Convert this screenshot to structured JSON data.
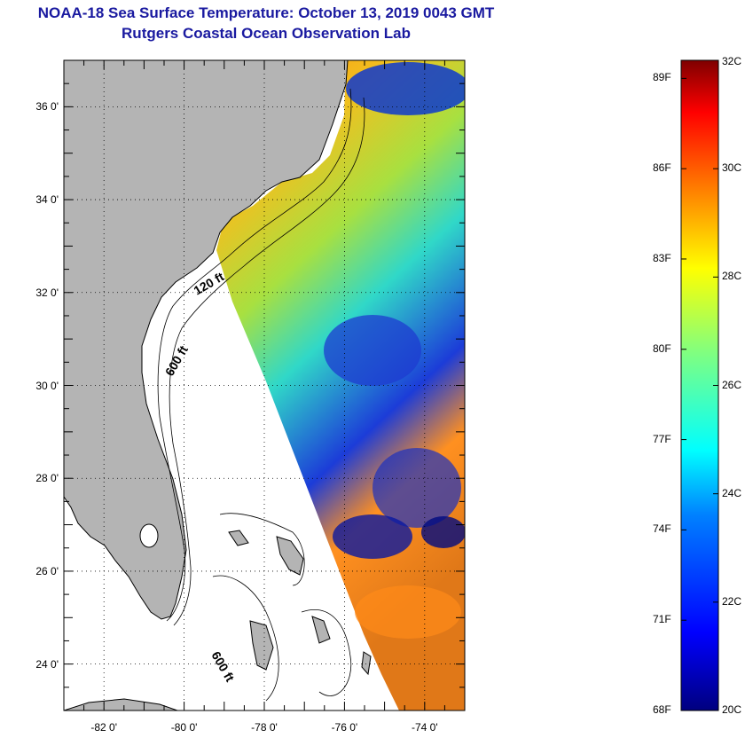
{
  "title": {
    "line1": "NOAA-18 Sea Surface Temperature:  October 13, 2019 0043 GMT",
    "line2": "Rutgers Coastal Ocean Observation Lab"
  },
  "map": {
    "lat_range": [
      23,
      37
    ],
    "lon_range": [
      -83,
      -73
    ],
    "lat_ticks": [
      {
        "value": 24,
        "label": "24 0'"
      },
      {
        "value": 26,
        "label": "26 0'"
      },
      {
        "value": 28,
        "label": "28 0'"
      },
      {
        "value": 30,
        "label": "30 0'"
      },
      {
        "value": 32,
        "label": "32 0'"
      },
      {
        "value": 34,
        "label": "34 0'"
      },
      {
        "value": 36,
        "label": "36 0'"
      }
    ],
    "lon_ticks": [
      {
        "value": -82,
        "label": "-82 0'"
      },
      {
        "value": -80,
        "label": "-80 0'"
      },
      {
        "value": -78,
        "label": "-78 0'"
      },
      {
        "value": -76,
        "label": "-76 0'"
      },
      {
        "value": -74,
        "label": "-74 0'"
      }
    ],
    "isobath_labels": [
      "120 ft",
      "600 ft",
      "600 ft"
    ],
    "land_color": "#b4b4b4",
    "grid": true
  },
  "colorbar": {
    "fahrenheit": [
      {
        "value": 68,
        "label": "68F"
      },
      {
        "value": 71,
        "label": "71F"
      },
      {
        "value": 74,
        "label": "74F"
      },
      {
        "value": 77,
        "label": "77F"
      },
      {
        "value": 80,
        "label": "80F"
      },
      {
        "value": 83,
        "label": "83F"
      },
      {
        "value": 86,
        "label": "86F"
      },
      {
        "value": 89,
        "label": "89F"
      }
    ],
    "celsius": [
      {
        "value": 20,
        "label": "20C"
      },
      {
        "value": 22,
        "label": "22C"
      },
      {
        "value": 24,
        "label": "24C"
      },
      {
        "value": 26,
        "label": "26C"
      },
      {
        "value": 28,
        "label": "28C"
      },
      {
        "value": 30,
        "label": "30C"
      },
      {
        "value": 32,
        "label": "32C"
      }
    ],
    "range_c": [
      20,
      32
    ],
    "colors": [
      "#00007f",
      "#0000ff",
      "#0080ff",
      "#00ffff",
      "#80ff80",
      "#ffff00",
      "#ff8000",
      "#ff0000",
      "#7f0000"
    ]
  }
}
